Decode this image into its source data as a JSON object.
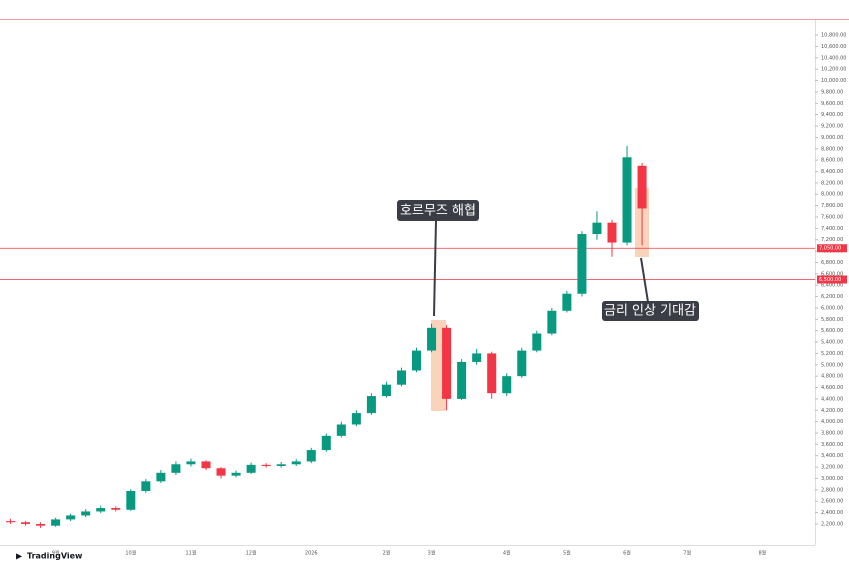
{
  "chart_data": {
    "type": "candlestick",
    "brand": "TradingView",
    "up_color": "#089981",
    "down_color": "#f23645",
    "annotations": [
      "호르무즈 해협",
      "금리 인상 기대감"
    ],
    "levels": [
      {
        "value": 7050,
        "label": "7,050.00"
      },
      {
        "value": 6500,
        "label": "6,500.00"
      }
    ],
    "level_color": "#f23645",
    "categories": [
      null,
      null,
      null,
      "9월",
      null,
      null,
      null,
      null,
      "10월",
      null,
      null,
      null,
      "11월",
      null,
      null,
      null,
      "12월",
      null,
      null,
      null,
      "2026",
      null,
      null,
      null,
      null,
      "2월",
      null,
      null,
      "3월",
      null,
      null,
      null,
      null,
      "4월",
      null,
      null,
      null,
      "5월",
      null,
      null,
      null,
      "6월",
      null,
      null,
      null,
      "7월",
      null,
      null,
      null,
      null,
      "8월",
      null,
      null,
      null
    ],
    "open": [
      2250,
      2230,
      2200,
      2170,
      2280,
      2350,
      2420,
      2480,
      2450,
      2780,
      2950,
      3100,
      3250,
      3300,
      3180,
      3050,
      3100,
      3240,
      3220,
      3250,
      3300,
      3500,
      3750,
      3950,
      4150,
      4450,
      4650,
      4900,
      5250,
      5650,
      4400,
      5050,
      5200,
      4500,
      4800,
      5250,
      5550,
      5950,
      6250,
      7300,
      7500,
      7150,
      8500,
      null,
      null,
      null,
      null,
      null,
      null,
      null,
      null,
      null,
      null,
      null
    ],
    "high": [
      2290,
      2250,
      2230,
      2310,
      2380,
      2460,
      2520,
      2510,
      2810,
      2990,
      3150,
      3300,
      3350,
      3320,
      3200,
      3140,
      3280,
      3270,
      3290,
      3340,
      3540,
      3790,
      4000,
      4200,
      4500,
      4700,
      4950,
      5300,
      5720,
      5700,
      5100,
      5280,
      5230,
      4850,
      5300,
      5600,
      6000,
      6300,
      7350,
      7700,
      7550,
      8850,
      8550,
      null,
      null,
      null,
      null,
      null,
      null,
      null,
      null,
      null,
      null,
      null
    ],
    "low": [
      2200,
      2170,
      2130,
      2150,
      2250,
      2320,
      2390,
      2420,
      2430,
      2750,
      2920,
      3060,
      3210,
      3150,
      3000,
      3020,
      3080,
      3190,
      3190,
      3220,
      3270,
      3470,
      3720,
      3920,
      4120,
      4420,
      4620,
      4870,
      5220,
      4200,
      4380,
      5000,
      4400,
      4450,
      4770,
      5220,
      5520,
      5920,
      6200,
      7200,
      6900,
      7100,
      7100,
      null,
      null,
      null,
      null,
      null,
      null,
      null,
      null,
      null,
      null,
      null
    ],
    "close": [
      2230,
      2200,
      2170,
      2280,
      2350,
      2420,
      2480,
      2450,
      2780,
      2950,
      3100,
      3250,
      3300,
      3180,
      3050,
      3100,
      3240,
      3220,
      3250,
      3300,
      3500,
      3750,
      3950,
      4150,
      4450,
      4650,
      4900,
      5250,
      5650,
      4400,
      5050,
      5200,
      4500,
      4800,
      5250,
      5550,
      5950,
      6250,
      7300,
      7500,
      7150,
      8650,
      7750,
      null,
      null,
      null,
      null,
      null,
      null,
      null,
      null,
      null,
      null,
      null
    ],
    "ylim": [
      1830,
      11065
    ],
    "yticks": [
      {
        "value": 2200,
        "label": "2,200.00"
      },
      {
        "value": 2400,
        "label": "2,400.00"
      },
      {
        "value": 2600,
        "label": "2,600.00"
      },
      {
        "value": 2800,
        "label": "2,800.00"
      },
      {
        "value": 3000,
        "label": "3,000.00"
      },
      {
        "value": 3200,
        "label": "3,200.00"
      },
      {
        "value": 3400,
        "label": "3,400.00"
      },
      {
        "value": 3600,
        "label": "3,600.00"
      },
      {
        "value": 3800,
        "label": "3,800.00"
      },
      {
        "value": 4000,
        "label": "4,000.00"
      },
      {
        "value": 4200,
        "label": "4,200.00"
      },
      {
        "value": 4400,
        "label": "4,400.00"
      },
      {
        "value": 4600,
        "label": "4,600.00"
      },
      {
        "value": 4800,
        "label": "4,800.00"
      },
      {
        "value": 5000,
        "label": "5,000.00"
      },
      {
        "value": 5200,
        "label": "5,200.00"
      },
      {
        "value": 5400,
        "label": "5,400.00"
      },
      {
        "value": 5600,
        "label": "5,600.00"
      },
      {
        "value": 5800,
        "label": "5,800.00"
      },
      {
        "value": 6000,
        "label": "6,000.00"
      },
      {
        "value": 6200,
        "label": "6,200.00"
      },
      {
        "value": 6400,
        "label": "6,400.00"
      },
      {
        "value": 6600,
        "label": "6,600.00"
      },
      {
        "value": 6800,
        "label": "6,800.00"
      },
      {
        "value": 7000,
        "label": "7,000.00"
      },
      {
        "value": 7200,
        "label": "7,200.00"
      },
      {
        "value": 7400,
        "label": "7,400.00"
      },
      {
        "value": 7600,
        "label": "7,600.00"
      },
      {
        "value": 7800,
        "label": "7,800.00"
      },
      {
        "value": 8000,
        "label": "8,000.00"
      },
      {
        "value": 8200,
        "label": "8,200.00"
      },
      {
        "value": 8400,
        "label": "8,400.00"
      },
      {
        "value": 8600,
        "label": "8,600.00"
      },
      {
        "value": 8800,
        "label": "8,800.00"
      },
      {
        "value": 9000,
        "label": "9,000.00"
      },
      {
        "value": 9200,
        "label": "9,200.00"
      },
      {
        "value": 9400,
        "label": "9,400.00"
      },
      {
        "value": 9600,
        "label": "9,600.00"
      },
      {
        "value": 9800,
        "label": "9,800.00"
      },
      {
        "value": 10000,
        "label": "10,000.00"
      },
      {
        "value": 10200,
        "label": "10,200.00"
      },
      {
        "value": 10400,
        "label": "10,400.00"
      },
      {
        "value": 10600,
        "label": "10,600.00"
      },
      {
        "value": 10800,
        "label": "10,800.00"
      }
    ],
    "grid": false
  }
}
